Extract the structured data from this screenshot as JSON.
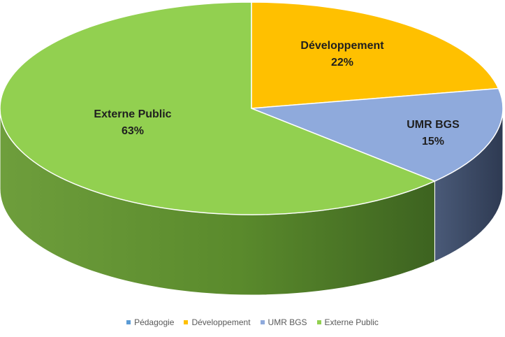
{
  "chart_data": {
    "type": "pie",
    "title": "",
    "categories": [
      "Pédagogie",
      "Développement",
      "UMR BGS",
      "Externe Public"
    ],
    "values": [
      0,
      22,
      15,
      63
    ],
    "data_labels": [
      {
        "category": "Développement",
        "name": "Développement",
        "value": "22%"
      },
      {
        "category": "UMR BGS",
        "name": "UMR BGS",
        "value": "15%"
      },
      {
        "category": "Externe Public",
        "name": "Externe Public",
        "value": "63%"
      }
    ],
    "colors": [
      "#5b9bd5",
      "#ffc000",
      "#8faadc",
      "#92d050"
    ],
    "side_colors": [
      "#3d6fa0",
      "#b38700",
      "#3b4a66",
      "#5d8a2e"
    ],
    "style": "3d",
    "legend_position": "bottom"
  }
}
